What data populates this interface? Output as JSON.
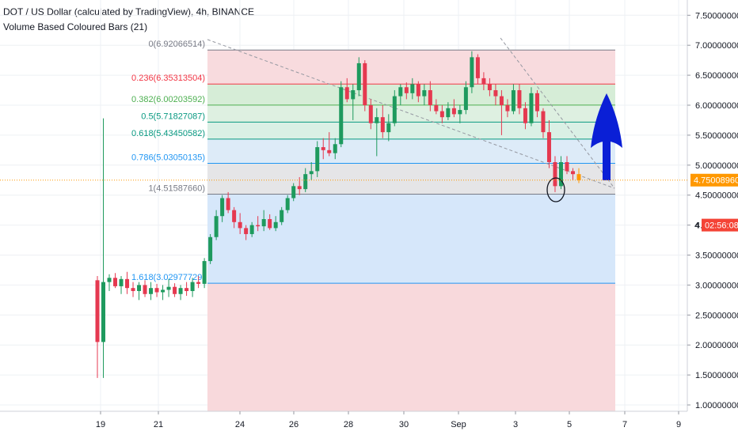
{
  "header": {
    "title": "DOT / US Dollar (calculated by TradingView), 4h, BINANCE",
    "indicator": "Volume Based Coloured Bars (21)"
  },
  "price_tag": {
    "value": "4.75008960",
    "timer": "02:56:08",
    "timer_prefix": "4",
    "color": "#ff9800",
    "timer_color": "#f44336"
  },
  "colors": {
    "up": "#1e9a5e",
    "down": "#e53950",
    "last_candle": "#ff9800",
    "grid": "#eef0f4",
    "arrow": "#0a1fd6"
  },
  "chart_data": {
    "type": "candlestick",
    "symbol": "DOT/USD",
    "interval": "4h",
    "x_ticks": [
      "19",
      "21",
      "24",
      "26",
      "28",
      "30",
      "Sep",
      "3",
      "5",
      "7",
      "9"
    ],
    "y_ticks": [
      "1.00000000",
      "1.50000000",
      "2.00000000",
      "2.50000000",
      "3.00000000",
      "3.50000000",
      "4.00000000",
      "4.50000000",
      "5.00000000",
      "5.50000000",
      "6.00000000",
      "6.50000000",
      "7.00000000",
      "7.50000000"
    ],
    "ylim": [
      0.95,
      7.55
    ],
    "fibonacci": [
      {
        "label": "0(6.92066514)",
        "ratio": "0",
        "price": 6.92066514,
        "color": "#787b86"
      },
      {
        "label": "0.236(6.35313504)",
        "ratio": "0.236",
        "price": 6.35313504,
        "color": "#f23645"
      },
      {
        "label": "0.382(6.00203592)",
        "ratio": "0.382",
        "price": 6.00203592,
        "color": "#4caf50"
      },
      {
        "label": "0.5(5.71827087)",
        "ratio": "0.5",
        "price": 5.71827087,
        "color": "#089981"
      },
      {
        "label": "0.618(5.43450582)",
        "ratio": "0.618",
        "price": 5.43450582,
        "color": "#089981"
      },
      {
        "label": "0.786(5.03050135)",
        "ratio": "0.786",
        "price": 5.03050135,
        "color": "#2196f3"
      },
      {
        "label": "1(4.51587660)",
        "ratio": "1",
        "price": 4.5158766,
        "color": "#787b86"
      },
      {
        "label": "1.618(3.02977729)",
        "ratio": "1.618",
        "price": 3.02977729,
        "color": "#2196f3"
      }
    ],
    "candles": [
      [
        3.08,
        3.15,
        1.45,
        2.05
      ],
      [
        2.05,
        5.78,
        1.45,
        3.05
      ],
      [
        3.05,
        3.18,
        2.9,
        3.12
      ],
      [
        3.12,
        3.2,
        2.95,
        2.98
      ],
      [
        2.98,
        3.15,
        2.85,
        3.1
      ],
      [
        3.1,
        3.22,
        2.85,
        2.95
      ],
      [
        2.95,
        3.05,
        2.8,
        2.9
      ],
      [
        2.9,
        3.05,
        2.75,
        3.0
      ],
      [
        3.0,
        3.08,
        2.8,
        2.85
      ],
      [
        2.85,
        3.05,
        2.75,
        2.95
      ],
      [
        2.95,
        3.02,
        2.8,
        2.88
      ],
      [
        2.88,
        3.0,
        2.75,
        2.92
      ],
      [
        2.92,
        3.1,
        2.8,
        2.97
      ],
      [
        2.97,
        3.03,
        2.8,
        2.85
      ],
      [
        2.85,
        3.0,
        2.75,
        2.95
      ],
      [
        2.95,
        3.05,
        2.82,
        2.9
      ],
      [
        2.9,
        3.12,
        2.8,
        3.05
      ],
      [
        3.05,
        3.15,
        2.95,
        3.02
      ],
      [
        3.02,
        3.45,
        2.95,
        3.4
      ],
      [
        3.4,
        3.85,
        3.35,
        3.8
      ],
      [
        3.8,
        4.25,
        3.75,
        4.15
      ],
      [
        4.15,
        4.5,
        4.05,
        4.45
      ],
      [
        4.45,
        4.55,
        4.2,
        4.25
      ],
      [
        4.25,
        4.3,
        3.95,
        4.05
      ],
      [
        4.05,
        4.2,
        3.85,
        3.95
      ],
      [
        3.95,
        4.0,
        3.75,
        3.85
      ],
      [
        3.85,
        4.05,
        3.8,
        4.0
      ],
      [
        4.0,
        4.15,
        3.9,
        3.98
      ],
      [
        3.98,
        4.25,
        3.9,
        4.1
      ],
      [
        4.1,
        4.18,
        3.92,
        3.95
      ],
      [
        3.95,
        4.15,
        3.9,
        4.05
      ],
      [
        4.05,
        4.3,
        4.0,
        4.25
      ],
      [
        4.25,
        4.5,
        4.2,
        4.45
      ],
      [
        4.45,
        4.7,
        4.4,
        4.65
      ],
      [
        4.65,
        4.8,
        4.5,
        4.6
      ],
      [
        4.6,
        4.95,
        4.55,
        4.85
      ],
      [
        4.85,
        5.05,
        4.75,
        4.9
      ],
      [
        4.9,
        5.4,
        4.8,
        5.3
      ],
      [
        5.3,
        5.45,
        5.1,
        5.25
      ],
      [
        5.25,
        5.55,
        5.15,
        5.2
      ],
      [
        5.2,
        5.45,
        5.1,
        5.35
      ],
      [
        5.35,
        6.4,
        5.3,
        6.3
      ],
      [
        6.3,
        6.45,
        6.05,
        6.1
      ],
      [
        6.1,
        6.35,
        5.75,
        6.25
      ],
      [
        6.25,
        6.8,
        6.15,
        6.7
      ],
      [
        6.7,
        6.75,
        5.9,
        6.0
      ],
      [
        6.0,
        6.1,
        5.6,
        5.7
      ],
      [
        5.7,
        5.95,
        5.15,
        5.8
      ],
      [
        5.8,
        6.0,
        5.45,
        5.55
      ],
      [
        5.55,
        5.85,
        5.4,
        5.7
      ],
      [
        5.7,
        6.25,
        5.65,
        6.15
      ],
      [
        6.15,
        6.35,
        6.0,
        6.3
      ],
      [
        6.3,
        6.38,
        6.1,
        6.2
      ],
      [
        6.2,
        6.45,
        6.1,
        6.35
      ],
      [
        6.35,
        6.4,
        6.05,
        6.15
      ],
      [
        6.15,
        6.35,
        6.0,
        6.25
      ],
      [
        6.25,
        6.4,
        5.9,
        6.0
      ],
      [
        6.0,
        6.1,
        5.85,
        5.9
      ],
      [
        5.9,
        6.0,
        5.7,
        5.8
      ],
      [
        5.8,
        6.05,
        5.75,
        5.95
      ],
      [
        5.95,
        6.1,
        5.8,
        5.85
      ],
      [
        5.85,
        6.0,
        5.7,
        5.92
      ],
      [
        5.92,
        6.4,
        5.85,
        6.3
      ],
      [
        6.3,
        6.9,
        6.2,
        6.8
      ],
      [
        6.8,
        6.85,
        6.35,
        6.45
      ],
      [
        6.45,
        6.55,
        6.25,
        6.35
      ],
      [
        6.35,
        6.45,
        6.15,
        6.25
      ],
      [
        6.25,
        6.35,
        6.0,
        6.15
      ],
      [
        6.15,
        6.25,
        5.5,
        6.0
      ],
      [
        6.0,
        6.1,
        5.8,
        5.9
      ],
      [
        5.9,
        6.35,
        5.85,
        6.25
      ],
      [
        6.25,
        6.35,
        5.85,
        5.95
      ],
      [
        5.95,
        6.05,
        5.6,
        5.7
      ],
      [
        5.7,
        6.3,
        5.65,
        6.2
      ],
      [
        6.2,
        6.25,
        5.8,
        5.9
      ],
      [
        5.9,
        5.95,
        5.45,
        5.55
      ],
      [
        5.55,
        5.75,
        4.95,
        5.05
      ],
      [
        5.05,
        5.15,
        4.55,
        4.65
      ],
      [
        4.65,
        5.15,
        4.6,
        5.05
      ],
      [
        5.05,
        5.15,
        4.85,
        4.9
      ],
      [
        4.9,
        4.95,
        4.75,
        4.85
      ],
      [
        4.85,
        4.95,
        4.7,
        4.75
      ]
    ]
  }
}
